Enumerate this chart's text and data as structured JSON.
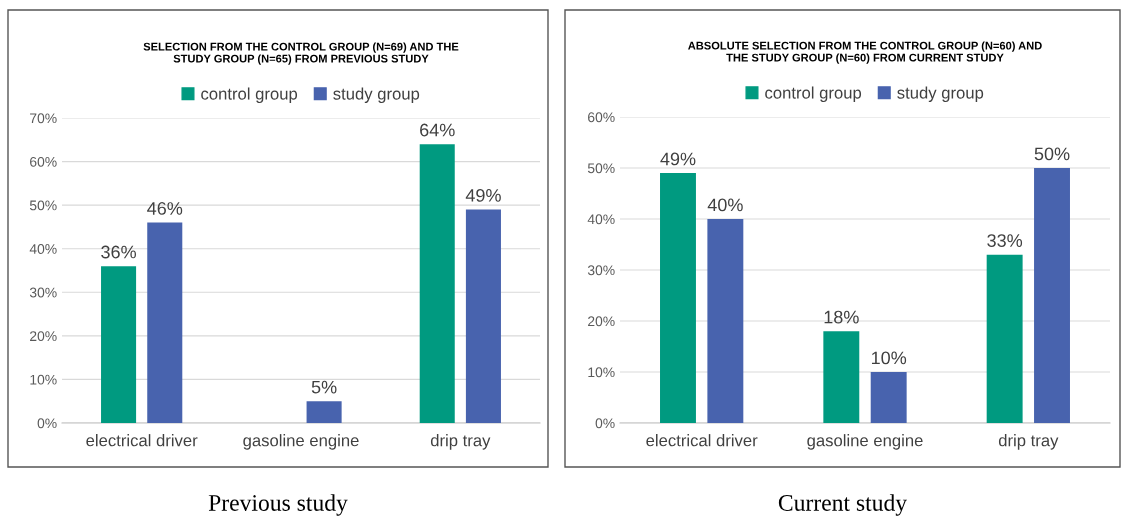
{
  "chart_data": [
    {
      "type": "bar",
      "title": "SELECTION FROM THE CONTROL GROUP (N=69) AND THE\nSTUDY GROUP (N=65) FROM PREVIOUS STUDY",
      "categories": [
        "electrical driver",
        "gasoline engine",
        "drip tray"
      ],
      "series": [
        {
          "name": "control group",
          "color": "#009a80",
          "values": [
            36,
            0,
            64
          ],
          "value_labels": [
            "36%",
            null,
            "64%"
          ]
        },
        {
          "name": "study group",
          "color": "#4863ae",
          "values": [
            46,
            5,
            49
          ],
          "value_labels": [
            "46%",
            "5%",
            "49%"
          ]
        }
      ],
      "ylim": [
        0,
        70
      ],
      "yticks": [
        {
          "value": 0,
          "label": "0%"
        },
        {
          "value": 10,
          "label": "10%"
        },
        {
          "value": 20,
          "label": "20%"
        },
        {
          "value": 30,
          "label": "30%"
        },
        {
          "value": 40,
          "label": "40%"
        },
        {
          "value": 50,
          "label": "50%"
        },
        {
          "value": 60,
          "label": "60%"
        },
        {
          "value": 70,
          "label": "70%"
        }
      ],
      "grid": "y",
      "legend": "top",
      "annotations": [
        "Previous study"
      ]
    },
    {
      "type": "bar",
      "title": "ABSOLUTE SELECTION FROM THE CONTROL GROUP (N=60) AND\nTHE STUDY GROUP (N=60) FROM CURRENT STUDY",
      "categories": [
        "electrical driver",
        "gasoline engine",
        "drip tray"
      ],
      "series": [
        {
          "name": "control group",
          "color": "#009a80",
          "values": [
            49,
            18,
            33
          ],
          "value_labels": [
            "49%",
            "18%",
            "33%"
          ]
        },
        {
          "name": "study group",
          "color": "#4863ae",
          "values": [
            40,
            10,
            50
          ],
          "value_labels": [
            "40%",
            "10%",
            "50%"
          ]
        }
      ],
      "ylim": [
        0,
        60
      ],
      "yticks": [
        {
          "value": 0,
          "label": "0%"
        },
        {
          "value": 10,
          "label": "10%"
        },
        {
          "value": 20,
          "label": "20%"
        },
        {
          "value": 30,
          "label": "30%"
        },
        {
          "value": 40,
          "label": "40%"
        },
        {
          "value": 50,
          "label": "50%"
        },
        {
          "value": 60,
          "label": "60%"
        }
      ],
      "grid": "y",
      "legend": "top",
      "annotations": [
        "Current study"
      ]
    }
  ]
}
